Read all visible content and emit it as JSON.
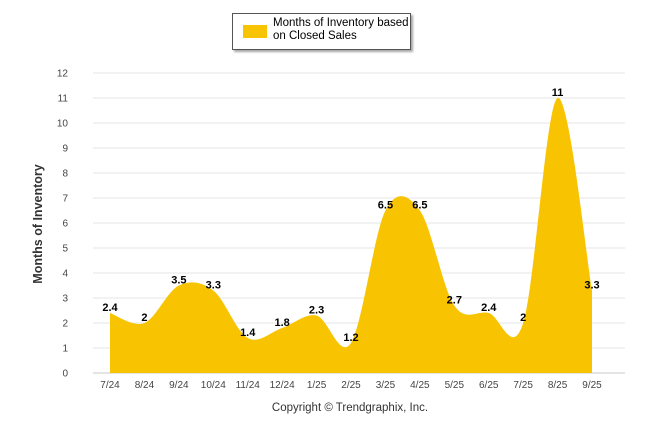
{
  "chart_data": {
    "type": "area",
    "title": "",
    "legend": {
      "label": "Months of Inventory based on Closed Sales",
      "placement": "top-center"
    },
    "ylabel": "Months of Inventory",
    "xlabel": "",
    "ylim": [
      0,
      12
    ],
    "yticks": [
      "0",
      "1",
      "2",
      "3",
      "4",
      "5",
      "6",
      "7",
      "8",
      "9",
      "10",
      "11",
      "12"
    ],
    "categories": [
      "7/24",
      "8/24",
      "9/24",
      "10/24",
      "11/24",
      "12/24",
      "1/25",
      "2/25",
      "3/25",
      "4/25",
      "5/25",
      "6/25",
      "7/25",
      "8/25",
      "9/25"
    ],
    "values": [
      2.4,
      2,
      3.5,
      3.3,
      1.4,
      1.8,
      2.3,
      1.2,
      6.5,
      6.5,
      2.7,
      2.4,
      2,
      11,
      3.3
    ],
    "value_labels": [
      "2.4",
      "2",
      "3.5",
      "3.3",
      "1.4",
      "1.8",
      "2.3",
      "1.2",
      "6.5",
      "6.5",
      "2.7",
      "2.4",
      "2",
      "11",
      "3.3"
    ],
    "grid": true,
    "color": "#F8C402"
  },
  "footer": {
    "copyright": "Copyright © Trendgraphix, Inc."
  }
}
